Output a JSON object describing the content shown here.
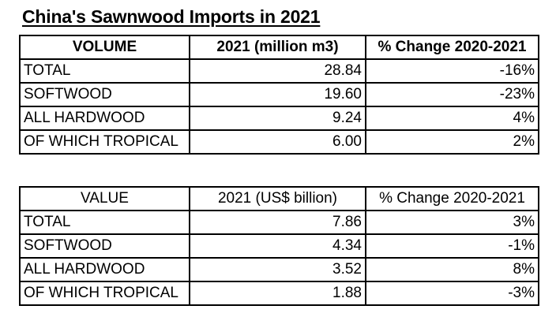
{
  "title": "China's Sawnwood Imports in 2021",
  "volume_table": {
    "headers": [
      "VOLUME",
      "2021 (million m3)",
      "% Change 2020-2021"
    ],
    "rows": [
      {
        "category": "TOTAL",
        "value": "28.84",
        "change": "-16%"
      },
      {
        "category": "SOFTWOOD",
        "value": "19.60",
        "change": "-23%"
      },
      {
        "category": "ALL HARDWOOD",
        "value": "9.24",
        "change": "4%"
      },
      {
        "category": "OF WHICH TROPICAL",
        "value": "6.00",
        "change": "2%"
      }
    ]
  },
  "value_table": {
    "headers": [
      "VALUE",
      "2021 (US$ billion)",
      "% Change 2020-2021"
    ],
    "rows": [
      {
        "category": "TOTAL",
        "value": "7.86",
        "change": "3%"
      },
      {
        "category": "SOFTWOOD",
        "value": "4.34",
        "change": "-1%"
      },
      {
        "category": "ALL HARDWOOD",
        "value": "3.52",
        "change": "8%"
      },
      {
        "category": "OF WHICH TROPICAL",
        "value": "1.88",
        "change": "-3%"
      }
    ]
  }
}
